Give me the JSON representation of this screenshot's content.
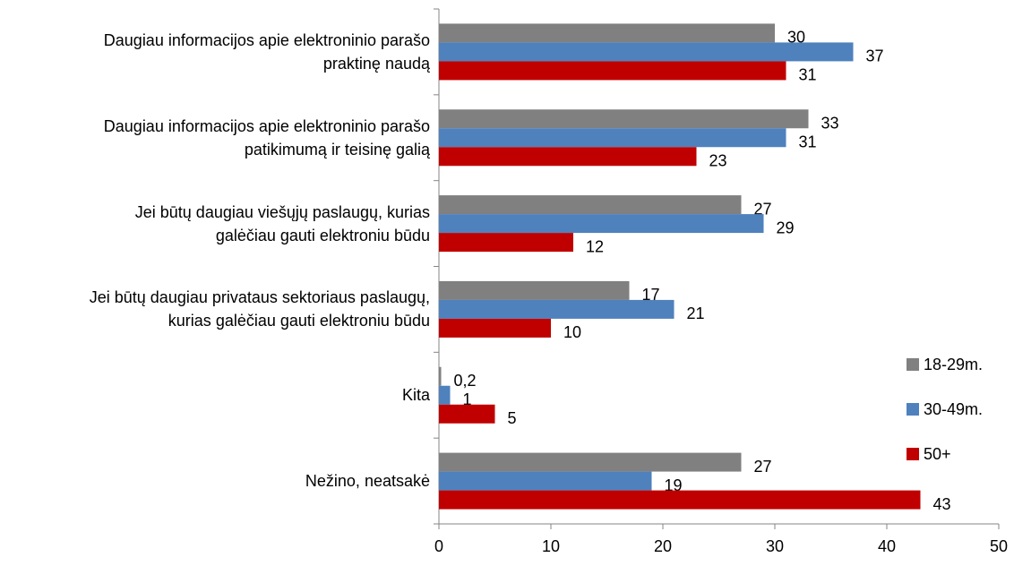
{
  "chart_data": {
    "type": "bar",
    "orientation": "horizontal",
    "categories": [
      "Daugiau informacijos apie elektroninio parašo\npraktinę naudą",
      "Daugiau informacijos apie elektroninio parašo\npatikimumą ir teisinę galią",
      "Jei būtų daugiau viešųjų paslaugų, kurias\ngalėčiau gauti elektroniu būdu",
      "Jei būtų daugiau privataus sektoriaus paslaugų,\nkurias galėčiau gauti elektroniu būdu",
      "Kita",
      "Nežino, neatsakė"
    ],
    "series": [
      {
        "name": "18-29m.",
        "color": "#808080",
        "values": [
          30,
          33,
          27,
          17,
          0.2,
          27
        ],
        "value_labels": [
          "30",
          "33",
          "27",
          "17",
          "0,2",
          "27"
        ]
      },
      {
        "name": "30-49m.",
        "color": "#4f81bd",
        "values": [
          37,
          31,
          29,
          21,
          1,
          19
        ]
      },
      {
        "name": "50+",
        "color": "#c00000",
        "values": [
          31,
          23,
          12,
          10,
          5,
          43
        ]
      }
    ],
    "xlim": [
      0,
      50
    ],
    "xticks": [
      0,
      10,
      20,
      30,
      40,
      50
    ],
    "grid": false,
    "legend": "right"
  }
}
